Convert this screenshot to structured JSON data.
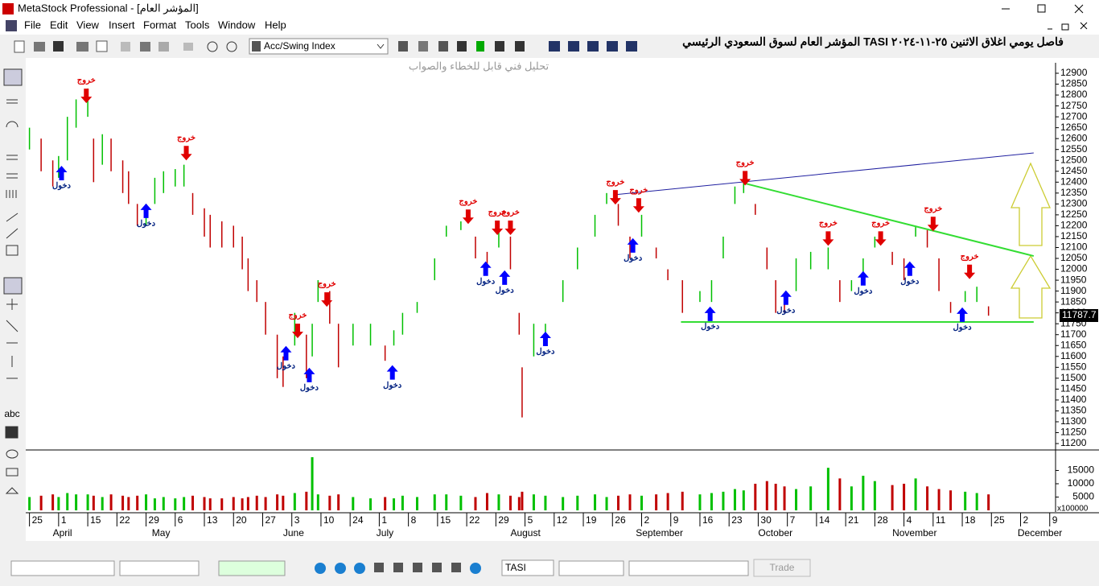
{
  "window": {
    "title": "MetaStock Professional - [المؤشر العام]"
  },
  "menu": [
    "File",
    "Edit",
    "View",
    "Insert",
    "Format",
    "Tools",
    "Window",
    "Help"
  ],
  "toolbar": {
    "indicator": "Acc/Swing Index"
  },
  "left_tools": {
    "text_tool": "abc"
  },
  "bottom": {
    "symbol": "TASI",
    "trade": "Trade"
  },
  "chart_data": {
    "type": "ohlc",
    "title": "المؤشر العام لسوق السعودي الرئيسي TASI فاصل يومي اغلاق الاثنين ٢٥-١١-٢٠٢٤",
    "watermark": "تحليل فني قابل للخطاء والصواب",
    "up_color": "#00c000",
    "down_color": "#c00000",
    "entry_color": "#0000ff",
    "exit_color": "#e00000",
    "xlim": [
      -0.1,
      35.2
    ],
    "ylim": [
      11178,
      12948
    ],
    "yticks": [
      11200,
      11250,
      11300,
      11350,
      11400,
      11450,
      11500,
      11550,
      11600,
      11650,
      11700,
      11750,
      11800,
      11850,
      11900,
      11950,
      12000,
      12050,
      12100,
      12150,
      12200,
      12250,
      12300,
      12350,
      12400,
      12450,
      12500,
      12550,
      12600,
      12650,
      12700,
      12750,
      12800,
      12850,
      12900
    ],
    "xticks": [
      {
        "value": 0,
        "label": "25"
      },
      {
        "value": 1,
        "label": "1"
      },
      {
        "value": 2,
        "label": "15"
      },
      {
        "value": 3,
        "label": "22"
      },
      {
        "value": 4,
        "label": "29"
      },
      {
        "value": 5,
        "label": "6"
      },
      {
        "value": 6,
        "label": "13"
      },
      {
        "value": 7,
        "label": "20"
      },
      {
        "value": 8,
        "label": "27"
      },
      {
        "value": 9,
        "label": "3"
      },
      {
        "value": 10,
        "label": "10"
      },
      {
        "value": 11,
        "label": "24"
      },
      {
        "value": 12,
        "label": "1"
      },
      {
        "value": 13,
        "label": "8"
      },
      {
        "value": 14,
        "label": "15"
      },
      {
        "value": 15,
        "label": "22"
      },
      {
        "value": 16,
        "label": "29"
      },
      {
        "value": 17,
        "label": "5"
      },
      {
        "value": 18,
        "label": "12"
      },
      {
        "value": 19,
        "label": "19"
      },
      {
        "value": 20,
        "label": "26"
      },
      {
        "value": 21,
        "label": "2"
      },
      {
        "value": 22,
        "label": "9"
      },
      {
        "value": 23,
        "label": "16"
      },
      {
        "value": 24,
        "label": "23"
      },
      {
        "value": 25,
        "label": "30"
      },
      {
        "value": 26,
        "label": "7"
      },
      {
        "value": 27,
        "label": "14"
      },
      {
        "value": 28,
        "label": "21"
      },
      {
        "value": 29,
        "label": "28"
      },
      {
        "value": 30,
        "label": "4"
      },
      {
        "value": 31,
        "label": "11"
      },
      {
        "value": 32,
        "label": "18"
      },
      {
        "value": 33,
        "label": "25"
      },
      {
        "value": 34,
        "label": "2"
      },
      {
        "value": 35,
        "label": "9"
      }
    ],
    "months": [
      {
        "value": 0.8,
        "label": "April"
      },
      {
        "value": 4.2,
        "label": "May"
      },
      {
        "value": 8.7,
        "label": "June"
      },
      {
        "value": 11.9,
        "label": "July"
      },
      {
        "value": 16.5,
        "label": "August"
      },
      {
        "value": 20.8,
        "label": "September"
      },
      {
        "value": 25.0,
        "label": "October"
      },
      {
        "value": 29.6,
        "label": "November"
      },
      {
        "value": 33.9,
        "label": "December"
      }
    ],
    "x": [
      0.0,
      0.4,
      0.8,
      1.0,
      1.3,
      1.6,
      2.0,
      2.2,
      2.5,
      2.8,
      3.2,
      3.4,
      3.7,
      4.0,
      4.3,
      4.6,
      5.0,
      5.3,
      5.6,
      6.0,
      6.2,
      6.6,
      7.0,
      7.3,
      7.5,
      7.8,
      8.1,
      8.5,
      8.7,
      9.1,
      9.5,
      9.7,
      9.9,
      10.3,
      10.6,
      11.1,
      11.7,
      12.2,
      12.5,
      12.8,
      13.3,
      13.9,
      14.3,
      14.8,
      15.3,
      15.7,
      16.1,
      16.5,
      16.8,
      16.9,
      17.3,
      17.7,
      18.3,
      18.8,
      19.4,
      19.8,
      20.2,
      20.6,
      21.0,
      21.5,
      21.9,
      22.4,
      23.0,
      23.4,
      23.8,
      24.2,
      24.5,
      24.9,
      25.3,
      25.6,
      25.9,
      26.3,
      26.8,
      27.4,
      27.8,
      28.2,
      28.6,
      29.0,
      29.6,
      30.0,
      30.4,
      30.8,
      31.2,
      31.6,
      32.1,
      32.5,
      32.9
    ],
    "low": [
      12550,
      12450,
      12380,
      12420,
      12500,
      12650,
      12700,
      12400,
      12480,
      12450,
      12350,
      12300,
      12200,
      12200,
      12300,
      12350,
      12380,
      12380,
      12250,
      12150,
      12100,
      12100,
      12100,
      12000,
      11900,
      11850,
      11700,
      11500,
      11460,
      11650,
      11500,
      11600,
      11850,
      11750,
      11550,
      11650,
      11650,
      11580,
      11650,
      11700,
      11800,
      11950,
      12150,
      12180,
      12050,
      11980,
      12100,
      12000,
      11700,
      11320,
      11600,
      11650,
      11850,
      12000,
      12150,
      12300,
      12200,
      12050,
      12150,
      12050,
      11950,
      11800,
      11850,
      11850,
      12050,
      12300,
      12350,
      12250,
      12000,
      11800,
      11800,
      11900,
      12000,
      12000,
      11850,
      11900,
      11950,
      12100,
      12020,
      11950,
      12150,
      12100,
      11900,
      11800,
      11850,
      11850,
      11787
    ],
    "high": [
      12650,
      12600,
      12500,
      12520,
      12700,
      12780,
      12830,
      12600,
      12620,
      12600,
      12500,
      12450,
      12300,
      12300,
      12420,
      12450,
      12460,
      12480,
      12350,
      12280,
      12250,
      12220,
      12200,
      12150,
      12050,
      11950,
      11850,
      11700,
      11600,
      11800,
      11700,
      11750,
      11950,
      11900,
      11750,
      11750,
      11750,
      11650,
      11720,
      11800,
      11850,
      12050,
      12200,
      12220,
      12150,
      12080,
      12200,
      12150,
      11800,
      11550,
      11750,
      11750,
      11950,
      12100,
      12250,
      12350,
      12300,
      12150,
      12250,
      12100,
      12000,
      11950,
      11900,
      11950,
      12150,
      12380,
      12410,
      12300,
      12100,
      11950,
      11850,
      12050,
      12080,
      12100,
      11950,
      11950,
      12050,
      12150,
      12080,
      12050,
      12200,
      12180,
      12050,
      11850,
      11900,
      11920,
      11830
    ],
    "volume": [
      5000,
      5500,
      6000,
      5000,
      6500,
      6000,
      6000,
      5500,
      5000,
      6000,
      5500,
      5000,
      5500,
      6000,
      4500,
      5000,
      4500,
      5000,
      5500,
      5000,
      4500,
      4500,
      5000,
      4500,
      5000,
      5500,
      5000,
      6000,
      5500,
      6500,
      7000,
      20000,
      6000,
      5500,
      6000,
      5000,
      4500,
      5000,
      4500,
      5500,
      5000,
      6000,
      6000,
      5500,
      5000,
      6500,
      6000,
      5500,
      5000,
      7000,
      6000,
      5500,
      5000,
      5500,
      6000,
      5000,
      5500,
      6000,
      5500,
      6000,
      6500,
      7000,
      6000,
      6500,
      7000,
      8000,
      7500,
      10000,
      11000,
      10000,
      9000,
      8000,
      9000,
      16000,
      12000,
      9000,
      13000,
      11000,
      9500,
      10000,
      12000,
      9000,
      8000,
      7500,
      7000,
      6500,
      6000
    ],
    "volume_ylim": [
      0,
      21800
    ],
    "volume_yticks": [
      5000,
      10000,
      15000
    ],
    "volume_multiplier": "x100000",
    "last_price": 11787.7,
    "signals": [
      {
        "label": "خروج",
        "kind": "exit",
        "x": 1.95,
        "y": 12763
      },
      {
        "label": "خروج",
        "kind": "exit",
        "x": 5.38,
        "y": 12500
      },
      {
        "label": "خروج",
        "kind": "exit",
        "x": 9.2,
        "y": 11684
      },
      {
        "label": "خروج",
        "kind": "exit",
        "x": 10.2,
        "y": 11828
      },
      {
        "label": "خروج",
        "kind": "exit",
        "x": 15.05,
        "y": 12208
      },
      {
        "label": "خروج",
        "kind": "exit",
        "x": 16.05,
        "y": 12157
      },
      {
        "label": "خروج",
        "kind": "exit",
        "x": 16.5,
        "y": 12157
      },
      {
        "label": "خروج",
        "kind": "exit",
        "x": 20.1,
        "y": 12297
      },
      {
        "label": "خروج",
        "kind": "exit",
        "x": 20.9,
        "y": 12260
      },
      {
        "label": "خروج",
        "kind": "exit",
        "x": 24.55,
        "y": 12385
      },
      {
        "label": "خروج",
        "kind": "exit",
        "x": 27.4,
        "y": 12108
      },
      {
        "label": "خروج",
        "kind": "exit",
        "x": 29.2,
        "y": 12108
      },
      {
        "label": "خروج",
        "kind": "exit",
        "x": 31.0,
        "y": 12175
      },
      {
        "label": "خروج",
        "kind": "exit",
        "x": 32.25,
        "y": 11955
      },
      {
        "label": "دخول",
        "kind": "entry",
        "x": 1.1,
        "y": 12475
      },
      {
        "label": "دخول",
        "kind": "entry",
        "x": 4.0,
        "y": 12302
      },
      {
        "label": "دخول",
        "kind": "entry",
        "x": 8.8,
        "y": 11648
      },
      {
        "label": "دخول",
        "kind": "entry",
        "x": 9.6,
        "y": 11548
      },
      {
        "label": "دخول",
        "kind": "entry",
        "x": 12.45,
        "y": 11560
      },
      {
        "label": "دخول",
        "kind": "entry",
        "x": 15.65,
        "y": 12036
      },
      {
        "label": "دخول",
        "kind": "entry",
        "x": 16.3,
        "y": 11995
      },
      {
        "label": "دخول",
        "kind": "entry",
        "x": 17.7,
        "y": 11714
      },
      {
        "label": "دخول",
        "kind": "entry",
        "x": 20.7,
        "y": 12143
      },
      {
        "label": "دخول",
        "kind": "entry",
        "x": 23.35,
        "y": 11829
      },
      {
        "label": "دخول",
        "kind": "entry",
        "x": 25.95,
        "y": 11903
      },
      {
        "label": "دخول",
        "kind": "entry",
        "x": 28.6,
        "y": 11992
      },
      {
        "label": "دخول",
        "kind": "entry",
        "x": 30.2,
        "y": 12036
      },
      {
        "label": "دخول",
        "kind": "entry",
        "x": 32.0,
        "y": 11825
      }
    ],
    "trendlines": [
      {
        "color": "#2020a0",
        "x": [
          20.05,
          34.45
        ],
        "y": [
          12342,
          12534
        ]
      },
      {
        "color": "#33dd33",
        "x": [
          24.55,
          34.45
        ],
        "y": [
          12394,
          12061
        ]
      },
      {
        "color": "#33dd33",
        "x": [
          22.35,
          34.45
        ],
        "y": [
          11758,
          11758
        ]
      }
    ]
  }
}
